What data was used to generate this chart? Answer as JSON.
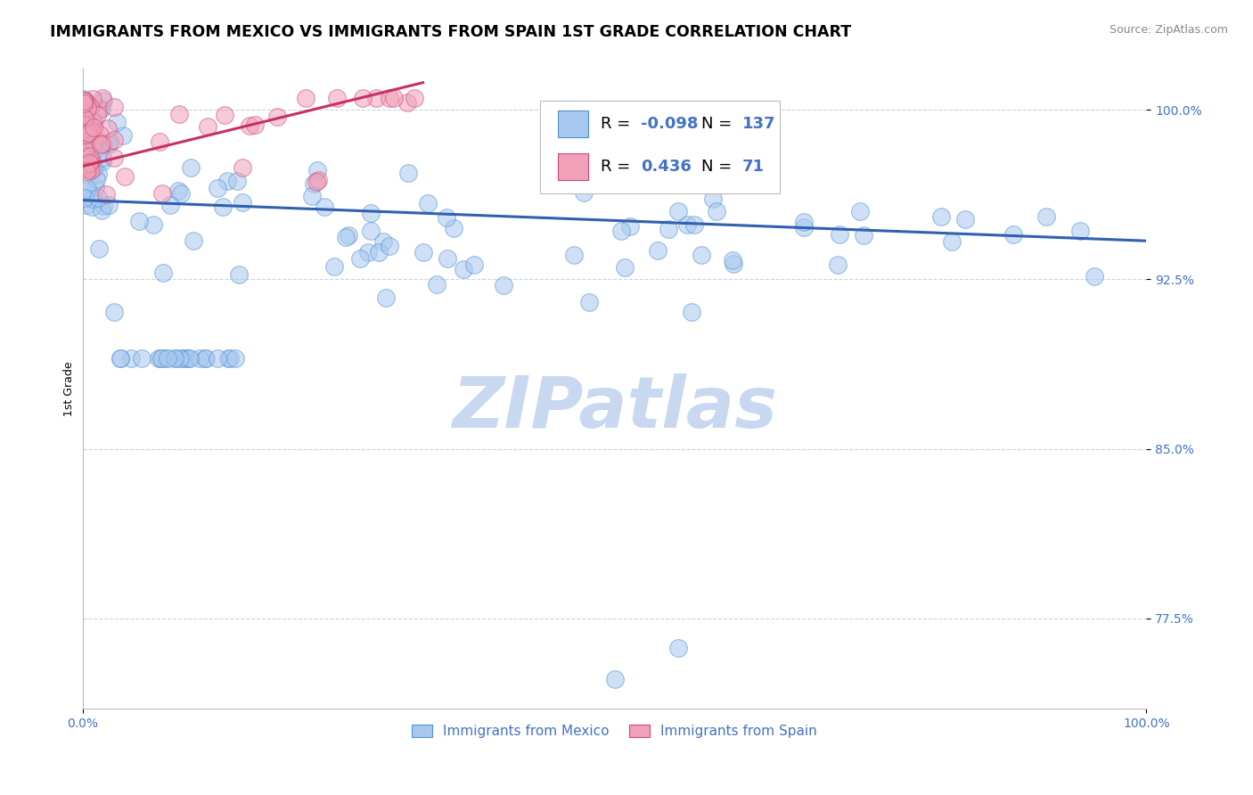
{
  "title": "IMMIGRANTS FROM MEXICO VS IMMIGRANTS FROM SPAIN 1ST GRADE CORRELATION CHART",
  "source_text": "Source: ZipAtlas.com",
  "ylabel": "1st Grade",
  "x_min": 0.0,
  "x_max": 1.0,
  "y_min": 0.735,
  "y_max": 1.018,
  "y_ticks": [
    0.775,
    0.85,
    0.925,
    1.0
  ],
  "y_tick_labels": [
    "77.5%",
    "85.0%",
    "92.5%",
    "100.0%"
  ],
  "x_ticks": [
    0.0,
    1.0
  ],
  "x_tick_labels": [
    "0.0%",
    "100.0%"
  ],
  "blue_fill": "#A8C8F0",
  "blue_edge": "#5090D0",
  "pink_fill": "#F0A0B8",
  "pink_edge": "#D04878",
  "blue_line_color": "#3060B0",
  "pink_line_color": "#C83060",
  "legend_blue_r": "-0.098",
  "legend_blue_n": "137",
  "legend_pink_r": "0.436",
  "legend_pink_n": "71",
  "legend_r_color": "#4472C4",
  "legend_n_color": "#4472C4",
  "watermark": "ZIPatlas",
  "watermark_color": "#C8D8F0",
  "blue_trend_x0": 0.0,
  "blue_trend_x1": 1.0,
  "blue_trend_y0": 0.96,
  "blue_trend_y1": 0.942,
  "pink_trend_x0": 0.0,
  "pink_trend_x1": 0.32,
  "pink_trend_y0": 0.975,
  "pink_trend_y1": 1.012,
  "background_color": "#FFFFFF",
  "grid_color": "#C8D4E8",
  "tick_label_color": "#4472C4",
  "title_fontsize": 12.5,
  "label_fontsize": 9,
  "tick_fontsize": 10,
  "legend_fontsize": 13,
  "scatter_size": 200,
  "scatter_alpha": 0.55
}
